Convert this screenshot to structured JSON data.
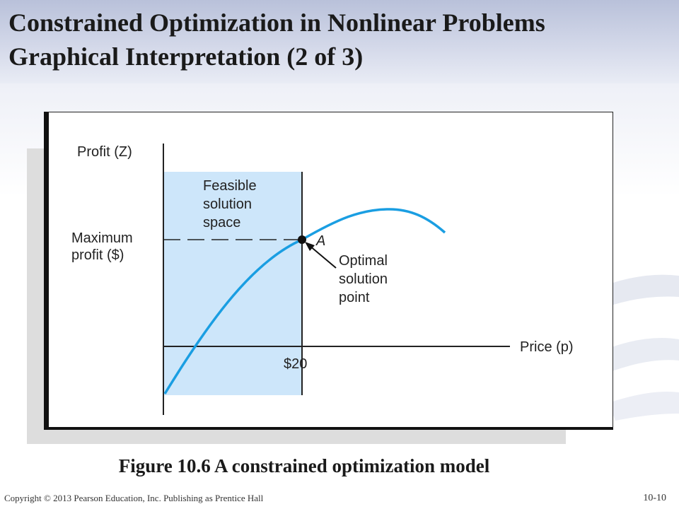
{
  "slide": {
    "title_line1": "Constrained Optimization in Nonlinear Problems",
    "title_line2": "Graphical Interpretation (2 of  3)",
    "caption": "Figure 10.6   A constrained optimization model",
    "copyright": "Copyright © 2013 Pearson Education, Inc. Publishing as Prentice Hall",
    "slide_number": "10-10"
  },
  "diagram": {
    "y_axis_label": "Profit (Z)",
    "x_axis_label": "Price (p)",
    "feasible_label": [
      "Feasible",
      "solution",
      "space"
    ],
    "max_profit_label": [
      "Maximum",
      "profit ($)"
    ],
    "point_label": "A",
    "optimal_label": [
      "Optimal",
      "solution",
      "point"
    ],
    "constraint_label": "$20",
    "colors": {
      "feasible_fill": "#cde6fa",
      "curve": "#1a9ee2",
      "axis": "#222222"
    }
  }
}
